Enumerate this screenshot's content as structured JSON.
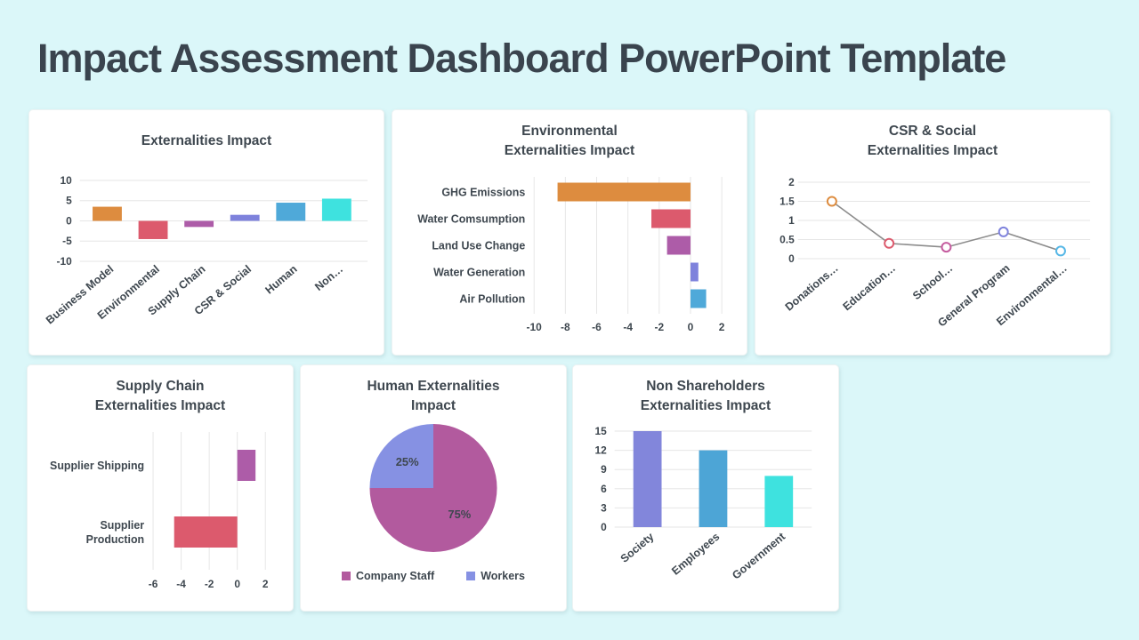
{
  "header": {
    "title": "Impact Assessment Dashboard PowerPoint Template"
  },
  "theme": {
    "background": "#DBF7F9",
    "card_background": "#FFFFFF",
    "text_color": "#3E474F",
    "gridline_color": "#E6E6E6",
    "palette": [
      "#DD8C3F",
      "#DC5A6D",
      "#AD5CA8",
      "#7E82DC",
      "#4FA9D9",
      "#3EE2DF"
    ]
  },
  "chart_data": [
    {
      "type": "bar",
      "title": "Externalities Impact",
      "categories": [
        "Business Model",
        "Environmental",
        "Supply Chain",
        "CSR & Social",
        "Human",
        "Non…"
      ],
      "values": [
        3.5,
        -4.5,
        -1.5,
        1.5,
        4.5,
        5.5
      ],
      "colors": [
        "#DD8C3F",
        "#DC5A6D",
        "#AD5CA8",
        "#7E82DC",
        "#4FA9D9",
        "#3EE2DF"
      ],
      "ylim": [
        -10,
        10
      ],
      "yticks": [
        10,
        5,
        0,
        -5,
        -10
      ],
      "grid": true
    },
    {
      "type": "hbar",
      "title": "Environmental\nExternalities Impact",
      "categories": [
        "GHG Emissions",
        "Water Comsumption",
        "Land Use Change",
        "Water Generation",
        "Air Pollution"
      ],
      "values": [
        -8.5,
        -2.5,
        -1.5,
        0.5,
        1
      ],
      "colors": [
        "#DD8C3F",
        "#DC5A6D",
        "#AD5CA8",
        "#7E82DC",
        "#4FA9D9"
      ],
      "xlim": [
        -10,
        2
      ],
      "xticks": [
        -10,
        -8,
        -6,
        -4,
        -2,
        0,
        2
      ],
      "grid": true
    },
    {
      "type": "line",
      "title": "CSR & Social\nExternalities Impact",
      "categories": [
        "Donations…",
        "Education…",
        "School…",
        "General Program",
        "Environmental…"
      ],
      "values": [
        1.5,
        0.4,
        0.3,
        0.7,
        0.2
      ],
      "line_color": "#8C8C8C",
      "marker_colors": [
        "#DD8C3F",
        "#DC5A6D",
        "#C55C9F",
        "#7E82DC",
        "#56B7E6"
      ],
      "ylim": [
        0,
        2
      ],
      "yticks": [
        2,
        1.5,
        1,
        0.5,
        0
      ],
      "grid": true
    },
    {
      "type": "hbar",
      "title": "Supply Chain\nExternalities Impact",
      "categories": [
        "Supplier Shipping",
        "Supplier\nProduction"
      ],
      "values": [
        1.3,
        -4.5
      ],
      "colors": [
        "#AD5CA8",
        "#DC5A6D"
      ],
      "xlim": [
        -6,
        2
      ],
      "xticks": [
        -6,
        -4,
        -2,
        0,
        2
      ],
      "grid": true
    },
    {
      "type": "pie",
      "title": "Human Externalities\nImpact",
      "labels": [
        "Company Staff",
        "Workers"
      ],
      "values": [
        75,
        25
      ],
      "data_labels": [
        "75%",
        "25%"
      ],
      "colors": [
        "#B25A9E",
        "#8691E3"
      ],
      "label_color": "#FFFFFF",
      "legend_position": "bottom"
    },
    {
      "type": "bar",
      "title": "Non Shareholders\nExternalities Impact",
      "categories": [
        "Society",
        "Employees",
        "Government"
      ],
      "values": [
        15,
        12,
        8
      ],
      "colors": [
        "#8286DB",
        "#4DA5D6",
        "#3EE2DF"
      ],
      "ylim": [
        0,
        15
      ],
      "yticks": [
        15,
        12,
        9,
        6,
        3,
        0
      ],
      "grid": true
    }
  ]
}
